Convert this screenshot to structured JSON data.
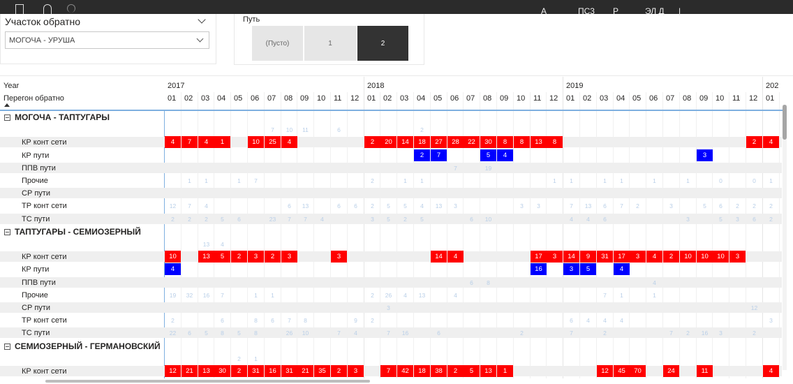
{
  "topbar": {
    "labels": [
      "А",
      "ПС3",
      "Р",
      "ЭЛ Д",
      "|"
    ]
  },
  "slicer_section": {
    "title": "Участок обратно",
    "selected": "МОГОЧА - УРУША"
  },
  "slicer_track": {
    "title": "Путь",
    "options": [
      "(Пусто)",
      "1",
      "2"
    ],
    "selected": "2"
  },
  "matrix": {
    "row_header_1": "Year",
    "row_header_2": "Перегон обратно",
    "years": [
      "2017",
      "2018",
      "2019",
      "202"
    ],
    "months": [
      "01",
      "02",
      "03",
      "04",
      "05",
      "06",
      "07",
      "08",
      "09",
      "10",
      "11",
      "12",
      "01",
      "02",
      "03",
      "04",
      "05",
      "06",
      "07",
      "08",
      "09",
      "10",
      "11",
      "12",
      "01",
      "02",
      "03",
      "04",
      "05",
      "06",
      "07",
      "08",
      "09",
      "10",
      "11",
      "12",
      "01"
    ],
    "groups": [
      {
        "name": "МОГОЧА - ТАПТУГАРЫ",
        "rows": [
          {
            "label": "",
            "cells": [
              "",
              "",
              "",
              "",
              "",
              "",
              7,
              10,
              11,
              "",
              6,
              "",
              "",
              "",
              "",
              2,
              "",
              "",
              "",
              "",
              "",
              "",
              "",
              "",
              "",
              "",
              "",
              "",
              "",
              "",
              "",
              "",
              "",
              "",
              "",
              "",
              ""
            ]
          },
          {
            "label": "КР конт сети",
            "cells": [
              "r4",
              "r7",
              "r4",
              "r1",
              "",
              "r10",
              "r25",
              "r4",
              "",
              "",
              "",
              "",
              "r2",
              "r20",
              "r14",
              "r18",
              "r27",
              "r28",
              "r22",
              "r30",
              "r8",
              "r8",
              "r13",
              "r8",
              "",
              "",
              "",
              "",
              "",
              "",
              "",
              "",
              "",
              "",
              "",
              "r2",
              "r4"
            ]
          },
          {
            "label": "КР пути",
            "cells": [
              "",
              "",
              "",
              "",
              "",
              "",
              "",
              "",
              "",
              "",
              "",
              "",
              "",
              "",
              "",
              "b2",
              "b7",
              "",
              "",
              "b5",
              "b4",
              "",
              "",
              "",
              "",
              "",
              "",
              "",
              "",
              "",
              "",
              "",
              "b3",
              "",
              "",
              "",
              ""
            ]
          },
          {
            "label": "ППВ пути",
            "cells": [
              "",
              "",
              "",
              "",
              "",
              "",
              "",
              "",
              "",
              "",
              "",
              "",
              "",
              "",
              "",
              "",
              "",
              7,
              "",
              19,
              "",
              "",
              "",
              "",
              "",
              "",
              "",
              "",
              "",
              "",
              "",
              "",
              "",
              "",
              "",
              "",
              ""
            ]
          },
          {
            "label": "Прочие",
            "cells": [
              "",
              1,
              1,
              "",
              1,
              7,
              "",
              "",
              "",
              "",
              "",
              "",
              2,
              "",
              1,
              1,
              "",
              "",
              "",
              "",
              "",
              "",
              "",
              1,
              1,
              "",
              1,
              1,
              "",
              1,
              "",
              1,
              "",
              0,
              "",
              0,
              1
            ]
          },
          {
            "label": "СР пути",
            "cells": [
              "",
              "",
              "",
              "",
              "",
              "",
              "",
              "",
              "",
              "",
              "",
              "",
              "",
              "",
              "",
              "",
              "",
              "",
              "",
              "",
              "",
              "",
              "",
              "",
              "",
              "",
              "",
              "",
              "",
              "",
              "",
              "",
              "",
              "",
              "",
              "",
              ""
            ]
          },
          {
            "label": "ТР конт сети",
            "cells": [
              12,
              7,
              4,
              "",
              "",
              "",
              "",
              6,
              13,
              "",
              6,
              6,
              2,
              5,
              5,
              4,
              13,
              3,
              "",
              "",
              "",
              3,
              3,
              "",
              7,
              13,
              6,
              7,
              2,
              "",
              3,
              "",
              5,
              6,
              2,
              2,
              2
            ]
          },
          {
            "label": "ТС пути",
            "cells": [
              2,
              2,
              2,
              5,
              6,
              "",
              23,
              7,
              7,
              4,
              "",
              "",
              3,
              5,
              2,
              5,
              "",
              "",
              6,
              10,
              "",
              "",
              "",
              "",
              4,
              4,
              6,
              "",
              "",
              "",
              "",
              3,
              "",
              5,
              3,
              6,
              2
            ]
          }
        ]
      },
      {
        "name": "ТАПТУГАРЫ - СЕМИОЗЕРНЫЙ",
        "rows": [
          {
            "label": "",
            "cells": [
              "",
              "",
              13,
              4,
              "",
              "",
              "",
              "",
              "",
              "",
              "",
              "",
              "",
              "",
              "",
              "",
              "",
              "",
              "",
              "",
              "",
              "",
              "",
              "",
              "",
              "",
              "",
              "",
              "",
              "",
              "",
              "",
              "",
              "",
              "",
              "",
              ""
            ]
          },
          {
            "label": "КР конт сети",
            "cells": [
              "r10",
              "",
              "r13",
              "r5",
              "r2",
              "r3",
              "r2",
              "r3",
              "",
              "",
              "r3",
              "",
              "",
              "",
              "",
              "",
              "r14",
              "r4",
              "",
              "",
              "",
              "",
              "r17",
              "r3",
              "r14",
              "r9",
              "r31",
              "r17",
              "r3",
              "r4",
              "r2",
              "r10",
              "r10",
              "r10",
              "r3",
              "",
              ""
            ]
          },
          {
            "label": "КР пути",
            "cells": [
              "b4",
              "",
              "",
              "",
              "",
              "",
              "",
              "",
              "",
              "",
              "",
              "",
              "",
              "",
              "",
              "",
              "",
              "",
              "",
              "",
              "",
              "",
              "b16",
              "",
              "b3",
              "b5",
              "",
              "b4",
              "",
              "",
              "",
              "",
              "",
              "",
              "",
              "",
              ""
            ]
          },
          {
            "label": "ППВ пути",
            "cells": [
              "",
              "",
              "",
              "",
              "",
              "",
              "",
              "",
              "",
              "",
              "",
              "",
              "",
              "",
              "",
              "",
              "",
              "",
              6,
              8,
              "",
              "",
              "",
              "",
              "",
              "",
              "",
              "",
              "",
              4,
              "",
              "",
              "",
              "",
              "",
              "",
              ""
            ]
          },
          {
            "label": "Прочие",
            "cells": [
              19,
              32,
              16,
              7,
              "",
              1,
              1,
              "",
              "",
              "",
              "",
              "",
              2,
              26,
              4,
              13,
              "",
              4,
              "",
              "",
              "",
              "",
              "",
              "",
              "",
              "",
              7,
              1,
              "",
              1,
              "",
              "",
              "",
              "",
              "",
              "",
              ""
            ]
          },
          {
            "label": "СР пути",
            "cells": [
              "",
              "",
              "",
              "",
              "",
              "",
              "",
              "",
              "",
              "",
              "",
              "",
              "",
              3,
              "",
              "",
              "",
              "",
              "",
              "",
              "",
              "",
              "",
              "",
              "",
              "",
              "",
              "",
              "",
              "",
              "",
              "",
              "",
              "",
              "",
              12,
              ""
            ]
          },
          {
            "label": "ТР конт сети",
            "cells": [
              2,
              "",
              "",
              6,
              "",
              8,
              6,
              7,
              8,
              "",
              "",
              9,
              2,
              "",
              "",
              "",
              "",
              "",
              "",
              "",
              "",
              "",
              "",
              "",
              6,
              4,
              4,
              4,
              "",
              "",
              "",
              "",
              "",
              "",
              "",
              "",
              3
            ]
          },
          {
            "label": "ТС пути",
            "cells": [
              22,
              6,
              5,
              8,
              5,
              8,
              "",
              26,
              10,
              "",
              7,
              4,
              "",
              7,
              16,
              "",
              6,
              "",
              "",
              "",
              "",
              2,
              "",
              "",
              7,
              "",
              2,
              "",
              "",
              "",
              7,
              2,
              16,
              3,
              "",
              2,
              ""
            ]
          }
        ]
      },
      {
        "name": "СЕМИОЗЕРНЫЙ - ГЕРМАНОВСКИЙ",
        "rows": [
          {
            "label": "",
            "cells": [
              "",
              "",
              "",
              "",
              2,
              1,
              "",
              "",
              "",
              "",
              "",
              "",
              "",
              "",
              "",
              "",
              "",
              "",
              "",
              "",
              "",
              "",
              "",
              "",
              "",
              "",
              "",
              "",
              "",
              "",
              "",
              "",
              "",
              "",
              "",
              "",
              ""
            ]
          },
          {
            "label": "КР конт сети",
            "cells": [
              "r12",
              "r21",
              "r13",
              "r30",
              "r2",
              "r31",
              "r16",
              "r31",
              "r21",
              "r35",
              "r2",
              "r3",
              "",
              "r7",
              "r42",
              "r18",
              "r38",
              "r2",
              "r5",
              "r13",
              "r1",
              "",
              "",
              "",
              "",
              "",
              "r12",
              "r45",
              "r70",
              "",
              "r24",
              "",
              "r11",
              "",
              "",
              "",
              "r4"
            ]
          }
        ]
      }
    ]
  }
}
